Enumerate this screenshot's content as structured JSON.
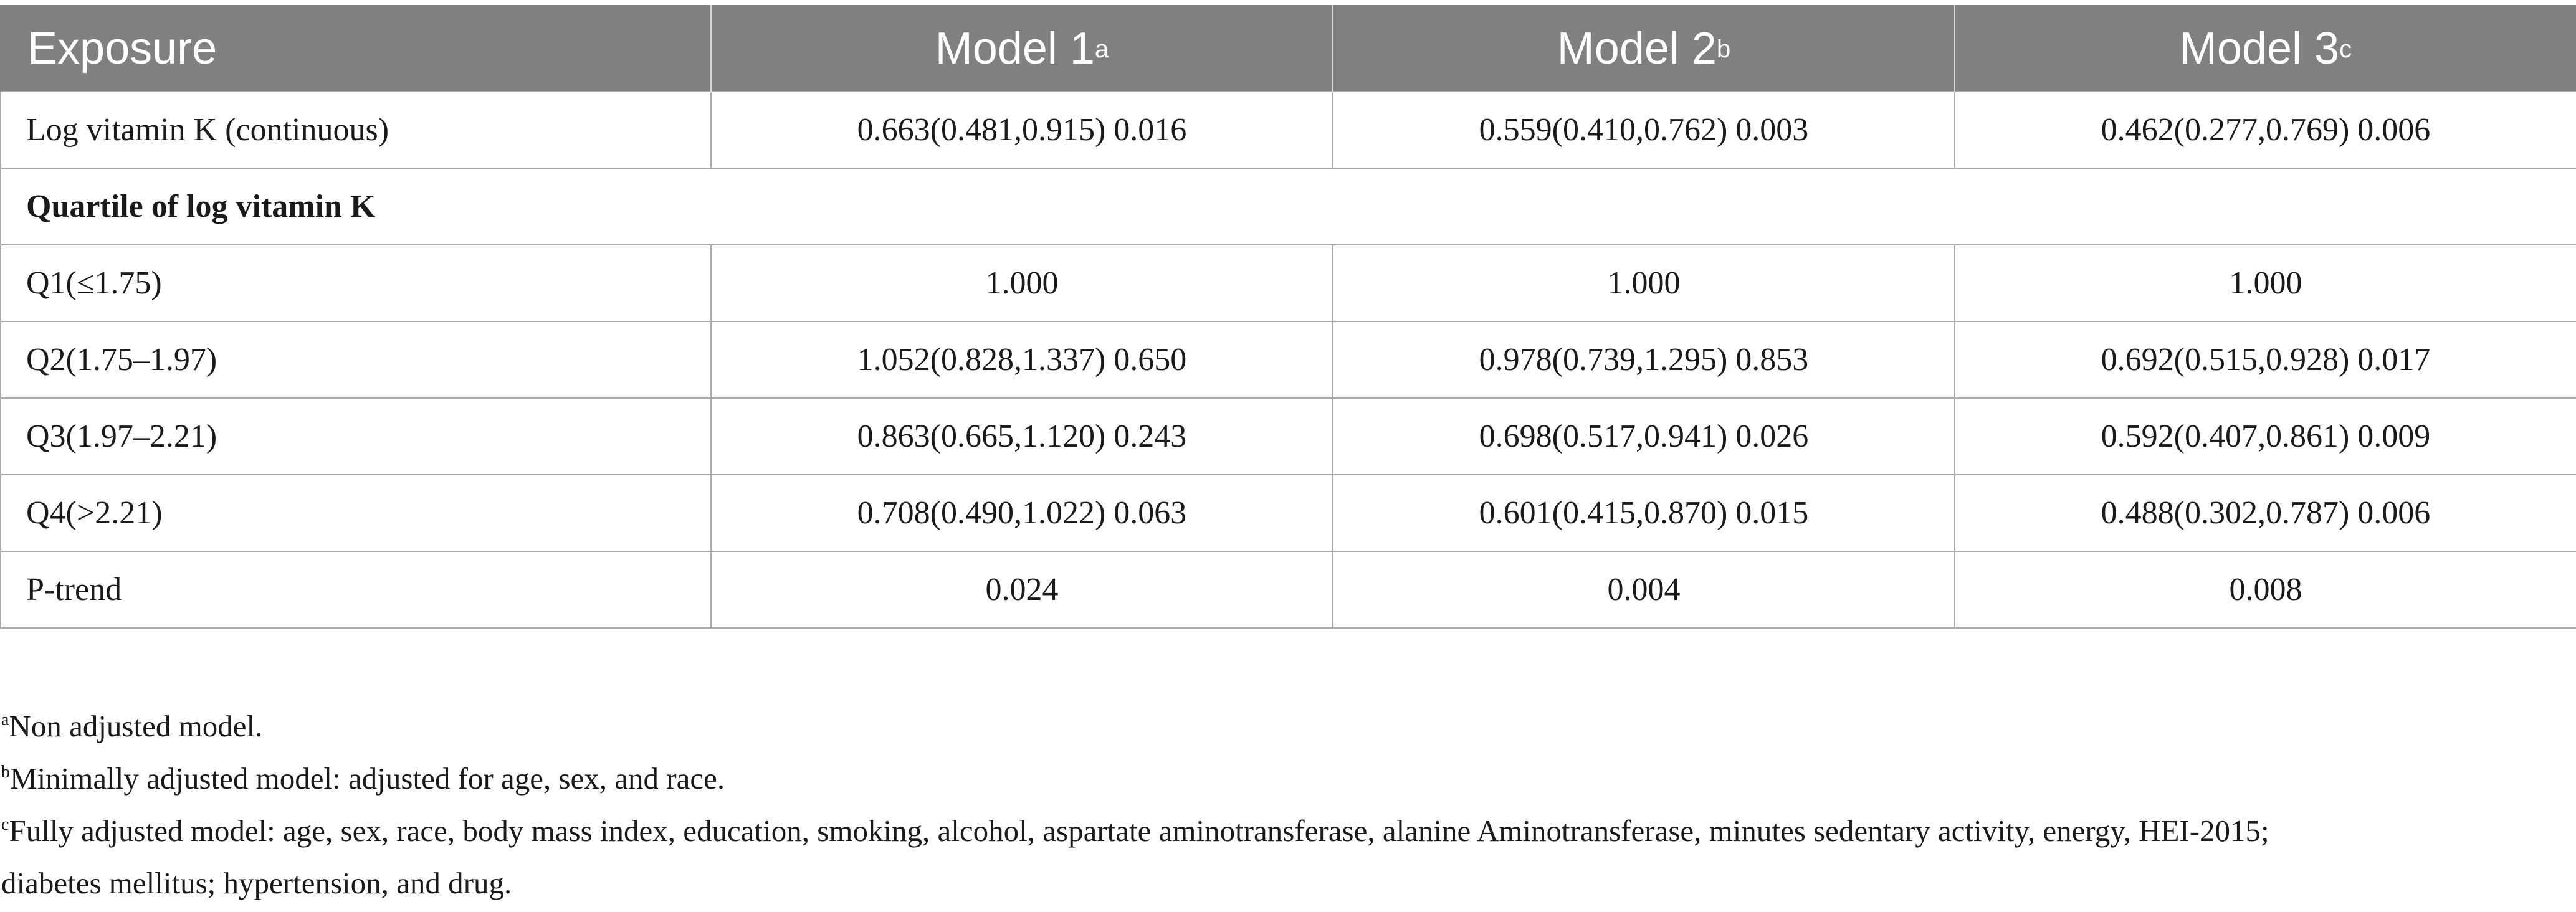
{
  "table": {
    "headers": [
      {
        "label": "Exposure",
        "sup": ""
      },
      {
        "label": "Model 1",
        "sup": "a"
      },
      {
        "label": "Model 2",
        "sup": "b"
      },
      {
        "label": "Model 3",
        "sup": "c"
      }
    ],
    "rows": [
      {
        "exposure": "Log vitamin K (continuous)",
        "m1": "0.663(0.481,0.915) 0.016",
        "m2": "0.559(0.410,0.762) 0.003",
        "m3": "0.462(0.277,0.769) 0.006"
      },
      {
        "section": "Quartile of log vitamin K"
      },
      {
        "exposure": "Q1(≤1.75)",
        "m1": "1.000",
        "m2": "1.000",
        "m3": "1.000"
      },
      {
        "exposure": "Q2(1.75–1.97)",
        "m1": "1.052(0.828,1.337) 0.650",
        "m2": "0.978(0.739,1.295) 0.853",
        "m3": "0.692(0.515,0.928) 0.017"
      },
      {
        "exposure": "Q3(1.97–2.21)",
        "m1": "0.863(0.665,1.120) 0.243",
        "m2": "0.698(0.517,0.941) 0.026",
        "m3": "0.592(0.407,0.861) 0.009"
      },
      {
        "exposure": "Q4(>2.21)",
        "m1": "0.708(0.490,1.022) 0.063",
        "m2": "0.601(0.415,0.870) 0.015",
        "m3": "0.488(0.302,0.787) 0.006"
      },
      {
        "exposure": "P-trend",
        "m1": "0.024",
        "m2": "0.004",
        "m3": "0.008"
      }
    ]
  },
  "footnotes": [
    {
      "mark": "a",
      "text": "Non adjusted model."
    },
    {
      "mark": "b",
      "text": "Minimally adjusted model: adjusted for age, sex, and race."
    },
    {
      "mark": "c",
      "text": "Fully adjusted model: age, sex, race, body mass index, education, smoking, alcohol, aspartate aminotransferase, alanine Aminotransferase, minutes sedentary activity, energy, HEI-2015;"
    },
    {
      "mark": "",
      "text": "diabetes mellitus; hypertension, and drug."
    }
  ]
}
